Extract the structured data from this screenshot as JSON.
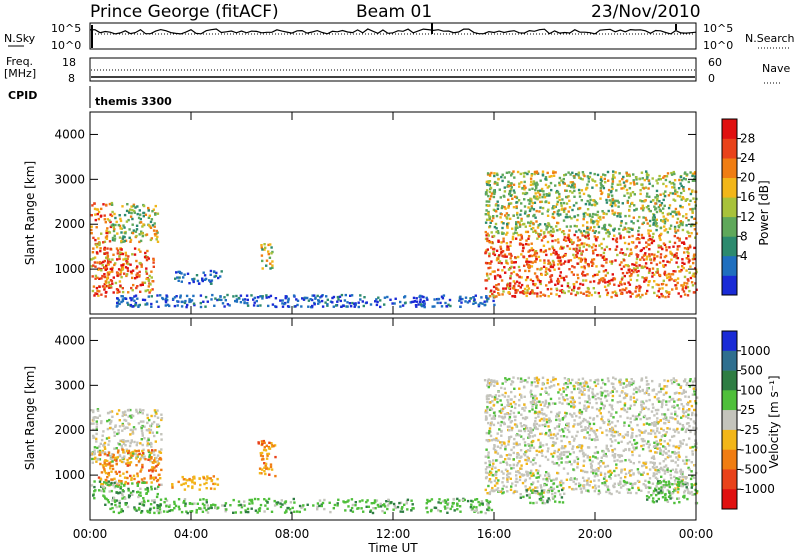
{
  "header": {
    "title_left": "Prince George (fitACF)",
    "title_center": "Beam 01",
    "title_right": "23/Nov/2010"
  },
  "summary_panels": {
    "nsky_label": "N.Sky",
    "nsky_ticks": [
      "10^5",
      "10^0"
    ],
    "nsearch_label": "N.Search",
    "nsearch_ticks": [
      "10^5",
      "10^0"
    ],
    "freq_label": "Freq.",
    "freq_unit": "[MHz]",
    "freq_ticks": [
      "18",
      "8"
    ],
    "nave_label": "Nave",
    "nave_ticks": [
      "60",
      "0"
    ],
    "cpid_label": "CPID",
    "cpid_value": "themis 3300"
  },
  "chart_data": [
    {
      "type": "heatmap",
      "name": "power",
      "ylabel": "Slant Range [km]",
      "yticks": [
        "1000",
        "2000",
        "3000",
        "4000"
      ],
      "ylim": [
        0,
        4500
      ],
      "xlim_hours": [
        0,
        24
      ],
      "colorbar": {
        "label": "Power [dB]",
        "ticks": [
          "28",
          "24",
          "20",
          "16",
          "12",
          "8",
          "4"
        ],
        "colors_bottom_to_top": [
          "#1a2bd6",
          "#1f6fbf",
          "#2c8a6e",
          "#5fa85a",
          "#a8c23a",
          "#f2b619",
          "#f07d12",
          "#e9421a",
          "#e01010"
        ]
      },
      "regions": [
        {
          "t": [
            0.0,
            0.8
          ],
          "r": [
            400,
            2500
          ],
          "level": "high"
        },
        {
          "t": [
            0.8,
            2.7
          ],
          "r": [
            1600,
            2500
          ],
          "level": "mid"
        },
        {
          "t": [
            0.5,
            2.5
          ],
          "r": [
            500,
            1500
          ],
          "level": "high"
        },
        {
          "t": [
            3.3,
            5.2
          ],
          "r": [
            700,
            1000
          ],
          "level": "low"
        },
        {
          "t": [
            6.7,
            7.2
          ],
          "r": [
            1000,
            1600
          ],
          "level": "mid"
        },
        {
          "t": [
            1.0,
            16.0
          ],
          "r": [
            180,
            450
          ],
          "level": "low"
        },
        {
          "t": [
            15.6,
            24.0
          ],
          "r": [
            400,
            1800
          ],
          "level": "high"
        },
        {
          "t": [
            15.6,
            24.0
          ],
          "r": [
            1800,
            3200
          ],
          "level": "mid"
        }
      ]
    },
    {
      "type": "heatmap",
      "name": "velocity",
      "ylabel": "Slant Range [km]",
      "yticks": [
        "1000",
        "2000",
        "3000",
        "4000"
      ],
      "ylim": [
        0,
        4500
      ],
      "xlabel": "Time UT",
      "xticks": [
        "00:00",
        "04:00",
        "08:00",
        "12:00",
        "16:00",
        "20:00",
        "00:00"
      ],
      "xlim_hours": [
        0,
        24
      ],
      "colorbar": {
        "label": "Velocity [m s⁻¹]",
        "ticks": [
          "1000",
          "500",
          "100",
          "25",
          "-25",
          "-100",
          "-500",
          "-1000"
        ],
        "colors_top_to_bottom": [
          "#1a2bd6",
          "#2f6f8f",
          "#2e7d43",
          "#4fbf3a",
          "#c4c4bc",
          "#f2b619",
          "#f07d12",
          "#e9421a",
          "#e01010"
        ]
      },
      "regions": [
        {
          "t": [
            0.0,
            2.8
          ],
          "r": [
            1300,
            2500
          ],
          "level": "grey"
        },
        {
          "t": [
            0.3,
            2.8
          ],
          "r": [
            800,
            1600
          ],
          "level": "orange"
        },
        {
          "t": [
            0.0,
            2.8
          ],
          "r": [
            500,
            900
          ],
          "level": "green"
        },
        {
          "t": [
            3.2,
            5.2
          ],
          "r": [
            700,
            1000
          ],
          "level": "yellow"
        },
        {
          "t": [
            6.6,
            7.3
          ],
          "r": [
            1000,
            1800
          ],
          "level": "orange"
        },
        {
          "t": [
            0.5,
            16.0
          ],
          "r": [
            180,
            500
          ],
          "level": "green"
        },
        {
          "t": [
            15.6,
            24.0
          ],
          "r": [
            600,
            3200
          ],
          "level": "grey"
        },
        {
          "t": [
            17.0,
            19.0
          ],
          "r": [
            400,
            700
          ],
          "level": "green"
        },
        {
          "t": [
            22.0,
            24.0
          ],
          "r": [
            400,
            900
          ],
          "level": "green"
        }
      ]
    }
  ]
}
